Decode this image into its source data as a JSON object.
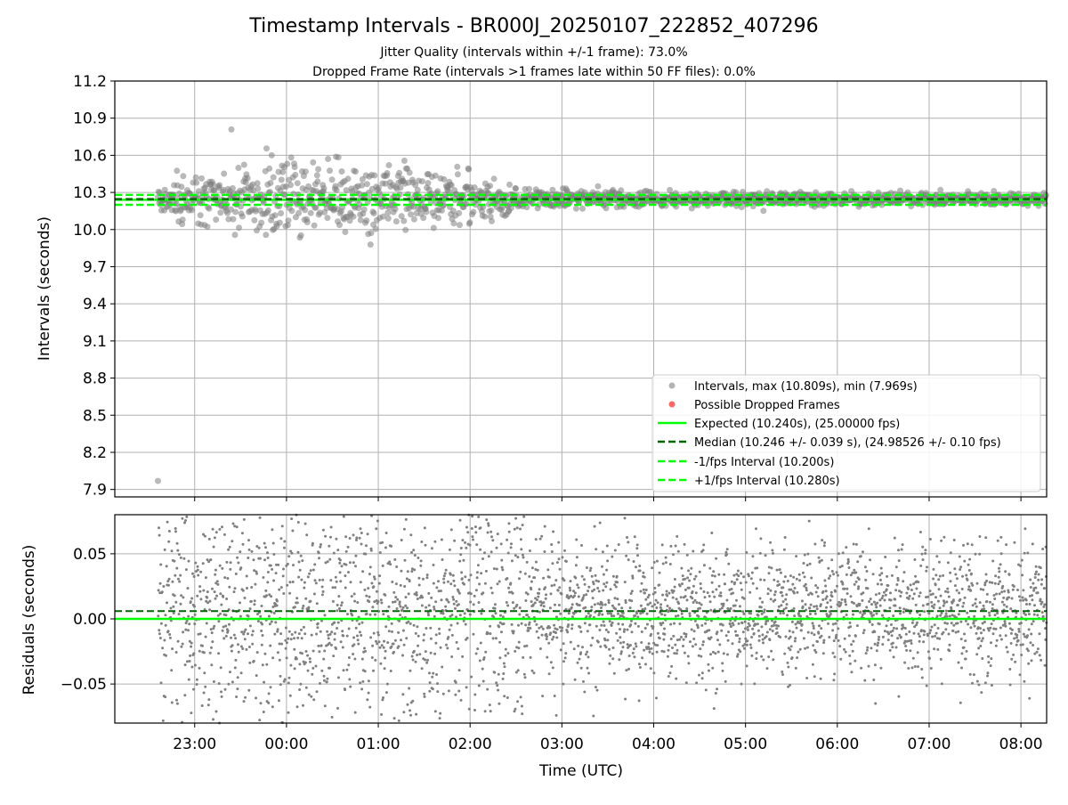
{
  "title": "Timestamp Intervals - BR000J_20250107_222852_407296",
  "subtitle_1": "Jitter Quality (intervals within +/-1 frame): 73.0%",
  "subtitle_2": "Dropped Frame Rate (intervals >1 frames late within 50 FF files): 0.0%",
  "colors": {
    "points": "#808080",
    "dropped": "#ff0000",
    "expected": "#00ff00",
    "median": "#006400",
    "band": "#00ff00",
    "grid": "#b0b0b0"
  },
  "chart_data": [
    {
      "type": "scatter",
      "panel": "intervals",
      "ylabel": "Intervals (seconds)",
      "ylim": [
        7.84,
        11.2
      ],
      "y_ticks": [
        "7.9",
        "8.2",
        "8.5",
        "8.8",
        "9.1",
        "9.4",
        "9.7",
        "10.0",
        "10.3",
        "10.6",
        "10.9",
        "11.2"
      ],
      "x_ticks": [
        "23:00",
        "00:00",
        "01:00",
        "02:00",
        "03:00",
        "04:00",
        "05:00",
        "06:00",
        "07:00",
        "08:00"
      ],
      "xlim_hours": [
        22.13,
        32.28
      ],
      "grid": true,
      "legend_position": "lower right",
      "series": [
        {
          "name": "Intervals, max (10.809s), min (7.969s)",
          "kind": "points",
          "max": 10.809,
          "min": 7.969,
          "min_time_hours": 22.6
        },
        {
          "name": "Possible Dropped Frames",
          "kind": "points",
          "count": 0
        },
        {
          "name": "Expected (10.240s), (25.00000 fps)",
          "kind": "hline",
          "y": 10.24
        },
        {
          "name": "Median (10.246 +/- 0.039 s), (24.98526 +/- 0.10 fps)",
          "kind": "hline",
          "y": 10.246
        },
        {
          "name": "-1/fps Interval (10.200s)",
          "kind": "hline",
          "y": 10.2
        },
        {
          "name": "+1/fps Interval (10.280s)",
          "kind": "hline",
          "y": 10.28
        }
      ],
      "scatter_bands": [
        {
          "t0": 22.6,
          "t1": 22.8,
          "sd": 0.06
        },
        {
          "t0": 22.8,
          "t1": 23.4,
          "sd": 0.12
        },
        {
          "t0": 23.4,
          "t1": 25.3,
          "sd": 0.14
        },
        {
          "t0": 25.3,
          "t1": 26.0,
          "sd": 0.12
        },
        {
          "t0": 26.0,
          "t1": 26.5,
          "sd": 0.07
        },
        {
          "t0": 26.5,
          "t1": 28.0,
          "sd": 0.035
        },
        {
          "t0": 28.0,
          "t1": 32.28,
          "sd": 0.025
        }
      ]
    },
    {
      "type": "scatter",
      "panel": "residuals",
      "ylabel": "Residuals (seconds)",
      "xlabel": "Time (UTC)",
      "ylim": [
        -0.08,
        0.08
      ],
      "y_ticks": [
        "−0.05",
        "0.00",
        "0.05"
      ],
      "y_tick_values": [
        -0.05,
        0.0,
        0.05
      ],
      "x_ticks": [
        "23:00",
        "00:00",
        "01:00",
        "02:00",
        "03:00",
        "04:00",
        "05:00",
        "06:00",
        "07:00",
        "08:00"
      ],
      "xlim_hours": [
        22.13,
        32.28
      ],
      "grid": true,
      "expected_line": 0.0,
      "median_line": 0.006
    }
  ]
}
